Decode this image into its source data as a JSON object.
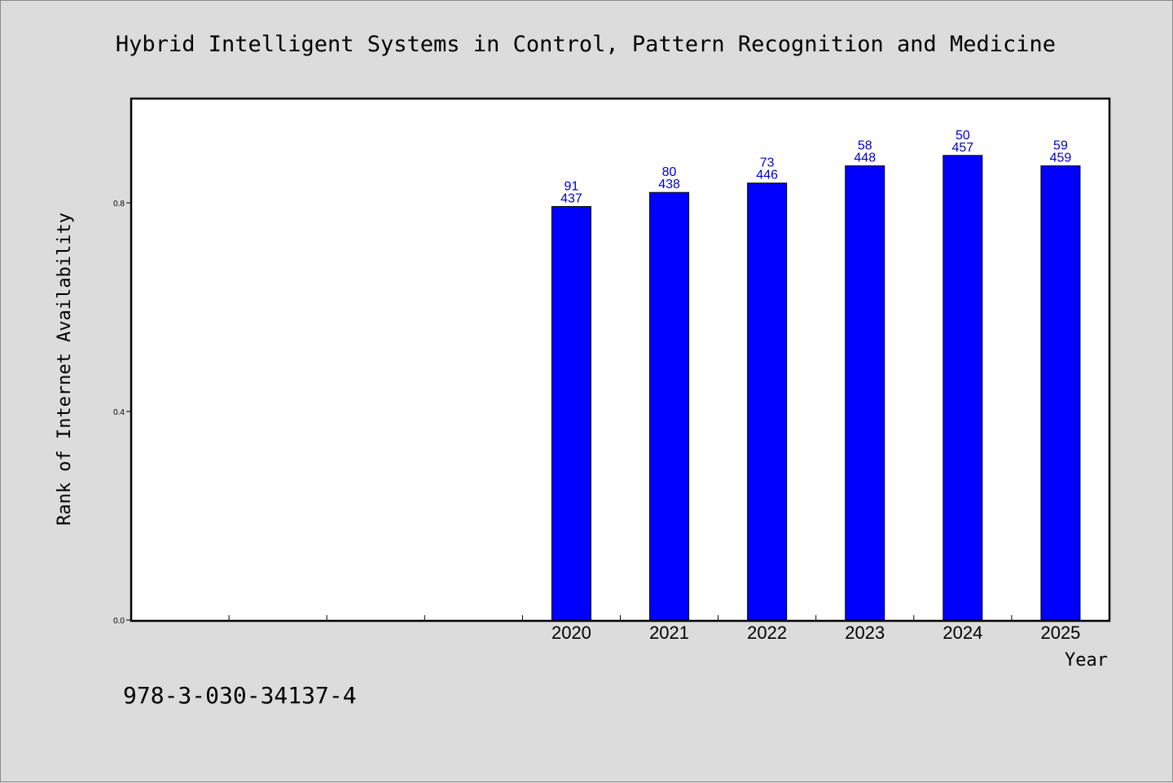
{
  "chart_data": {
    "type": "bar",
    "title": "Hybrid Intelligent Systems in Control, Pattern Recognition and Medicine",
    "ylabel": "Rank of Internet Availability",
    "xlabel": "Year",
    "footer": "978-3-030-34137-4",
    "ylim": [
      0,
      1.0
    ],
    "yticks": [
      0.0,
      0.4,
      0.8
    ],
    "ytick_labels": [
      "0.0",
      "0.4",
      "0.8"
    ],
    "slot_count": 10,
    "categories": [
      "2020",
      "2021",
      "2022",
      "2023",
      "2024",
      "2025"
    ],
    "values": [
      0.793,
      0.82,
      0.838,
      0.871,
      0.891,
      0.871
    ],
    "label_top": [
      "91",
      "80",
      "73",
      "58",
      "50",
      "59"
    ],
    "label_bottom": [
      "437",
      "438",
      "446",
      "448",
      "457",
      "459"
    ],
    "grid": false,
    "legend": "none"
  },
  "colors": {
    "bar": "#0000ff",
    "bar_label": "#0000cc",
    "background": "#dcdcdc",
    "plot_background": "#ffffff"
  }
}
